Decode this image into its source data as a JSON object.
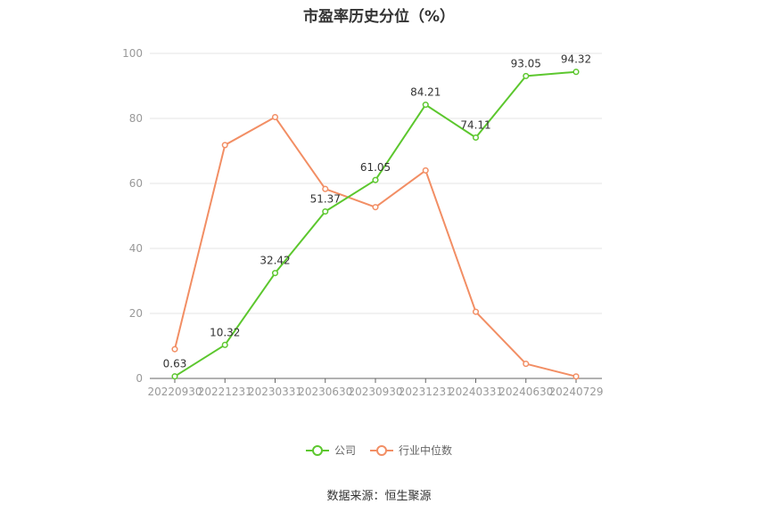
{
  "title": "市盈率历史分位（%）",
  "source": "数据来源：恒生聚源",
  "colors": {
    "company": "#5cc72e",
    "industry": "#f28e64",
    "grid": "#e6e6e6",
    "axis": "#666666",
    "tick_text": "#999999"
  },
  "chart_data": {
    "type": "line",
    "categories": [
      "20220930",
      "20221231",
      "20230331",
      "20230630",
      "20230930",
      "20231231",
      "20240331",
      "20240630",
      "20240729"
    ],
    "ylim": [
      0,
      100
    ],
    "yticks": [
      0,
      20,
      40,
      60,
      80,
      100
    ],
    "grid": true,
    "legend_position": "bottom",
    "series": [
      {
        "name": "公司",
        "values": [
          0.63,
          10.32,
          32.42,
          51.37,
          61.05,
          84.21,
          74.11,
          93.05,
          94.32
        ],
        "labels": [
          "0.63",
          "10.32",
          "32.42",
          "51.37",
          "61.05",
          "84.21",
          "74.11",
          "93.05",
          "94.32"
        ]
      },
      {
        "name": "行业中位数",
        "values": [
          9.0,
          71.8,
          80.4,
          58.3,
          52.7,
          64.0,
          20.5,
          4.5,
          0.6
        ]
      }
    ]
  }
}
